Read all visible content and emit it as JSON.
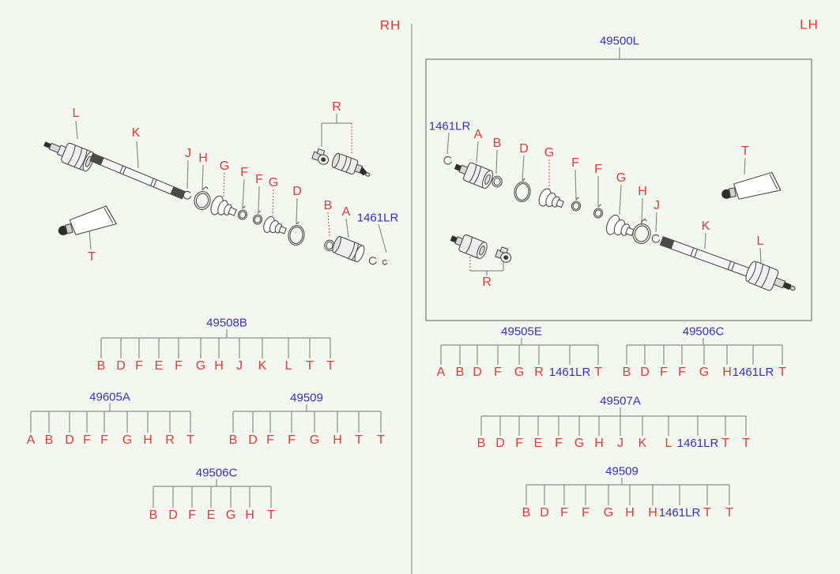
{
  "page": {
    "side_left": "RH",
    "side_right": "LH"
  },
  "lh_assembly": {
    "part_number": "49500L"
  },
  "rh": {
    "callouts": [
      "L",
      "K",
      "J",
      "H",
      "G",
      "F",
      "F",
      "G",
      "D",
      "B",
      "A",
      "1461LR",
      "R",
      "T"
    ]
  },
  "lh": {
    "callouts": [
      "1461LR",
      "A",
      "B",
      "D",
      "G",
      "F",
      "F",
      "G",
      "H",
      "J",
      "K",
      "L",
      "T",
      "R"
    ]
  },
  "trees": {
    "t49508b": {
      "label": "49508B",
      "leaves": [
        "B",
        "D",
        "F",
        "E",
        "F",
        "G",
        "H",
        "J",
        "K",
        "L",
        "T",
        "T"
      ]
    },
    "t49605a": {
      "label": "49605A",
      "leaves": [
        "A",
        "B",
        "D",
        "F",
        "F",
        "G",
        "H",
        "R",
        "T"
      ]
    },
    "t49509_left": {
      "label": "49509",
      "leaves": [
        "B",
        "D",
        "F",
        "F",
        "G",
        "H",
        "T",
        "T"
      ]
    },
    "t49506c_left": {
      "label": "49506C",
      "leaves": [
        "B",
        "D",
        "F",
        "E",
        "G",
        "H",
        "T"
      ]
    },
    "t49505e": {
      "label": "49505E",
      "leaves": [
        "A",
        "B",
        "D",
        "F",
        "G",
        "R",
        "1461LR",
        "T"
      ]
    },
    "t49506c_right": {
      "label": "49506C",
      "leaves": [
        "B",
        "D",
        "F",
        "F",
        "G",
        "H",
        "1461LR",
        "T"
      ]
    },
    "t49507a": {
      "label": "49507A",
      "leaves": [
        "B",
        "D",
        "F",
        "E",
        "F",
        "G",
        "H",
        "J",
        "K",
        "L",
        "1461LR",
        "T",
        "T"
      ]
    },
    "t49509_right": {
      "label": "49509",
      "leaves": [
        "B",
        "D",
        "F",
        "F",
        "G",
        "H",
        "H",
        "1461LR",
        "T",
        "T"
      ]
    }
  },
  "colors": {
    "callout_red": "#e23b32",
    "part_number_blue": "#3232c4",
    "line_gray": "#8d8d8d"
  }
}
